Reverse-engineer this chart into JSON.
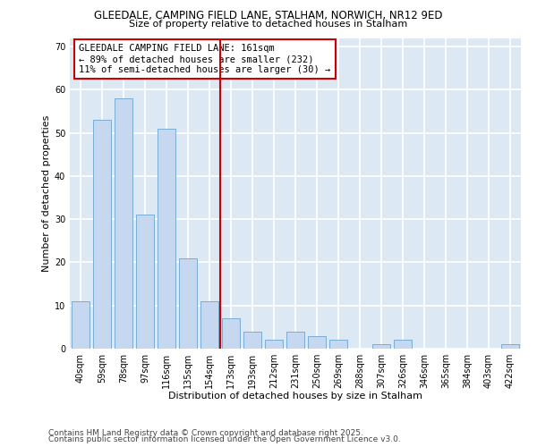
{
  "title1": "GLEEDALE, CAMPING FIELD LANE, STALHAM, NORWICH, NR12 9ED",
  "title2": "Size of property relative to detached houses in Stalham",
  "xlabel": "Distribution of detached houses by size in Stalham",
  "ylabel": "Number of detached properties",
  "categories": [
    "40sqm",
    "59sqm",
    "78sqm",
    "97sqm",
    "116sqm",
    "135sqm",
    "154sqm",
    "173sqm",
    "193sqm",
    "212sqm",
    "231sqm",
    "250sqm",
    "269sqm",
    "288sqm",
    "307sqm",
    "326sqm",
    "346sqm",
    "365sqm",
    "384sqm",
    "403sqm",
    "422sqm"
  ],
  "values": [
    11,
    53,
    58,
    31,
    51,
    21,
    11,
    7,
    4,
    2,
    4,
    3,
    2,
    0,
    1,
    2,
    0,
    0,
    0,
    0,
    1
  ],
  "bar_color": "#c5d8ef",
  "bar_edge_color": "#7aadd4",
  "vline_x_idx": 6.5,
  "vline_color": "#cc0000",
  "annotation_text": "GLEEDALE CAMPING FIELD LANE: 161sqm\n← 89% of detached houses are smaller (232)\n11% of semi-detached houses are larger (30) →",
  "annotation_box_color": "#ffffff",
  "annotation_box_edge": "#cc0000",
  "ylim": [
    0,
    72
  ],
  "yticks": [
    0,
    10,
    20,
    30,
    40,
    50,
    60,
    70
  ],
  "background_color": "#dce9f5",
  "grid_color": "#ffffff",
  "footer1": "Contains HM Land Registry data © Crown copyright and database right 2025.",
  "footer2": "Contains public sector information licensed under the Open Government Licence v3.0.",
  "title_fontsize": 8.5,
  "subtitle_fontsize": 8,
  "tick_fontsize": 7,
  "label_fontsize": 8,
  "footer_fontsize": 6.5,
  "annot_fontsize": 7.5
}
